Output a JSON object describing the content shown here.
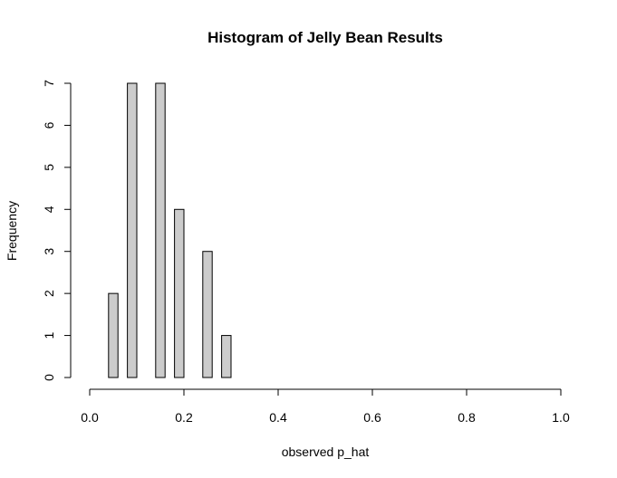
{
  "chart_data": {
    "type": "bar",
    "title": "Histogram of Jelly Bean Results",
    "xlabel": "observed p_hat",
    "ylabel": "Frequency",
    "bin_width": 0.02,
    "bins": [
      {
        "start": 0.04,
        "end": 0.06,
        "count": 2
      },
      {
        "start": 0.06,
        "end": 0.08,
        "count": 0
      },
      {
        "start": 0.08,
        "end": 0.1,
        "count": 7
      },
      {
        "start": 0.1,
        "end": 0.12,
        "count": 0
      },
      {
        "start": 0.12,
        "end": 0.14,
        "count": 0
      },
      {
        "start": 0.14,
        "end": 0.16,
        "count": 7
      },
      {
        "start": 0.16,
        "end": 0.18,
        "count": 0
      },
      {
        "start": 0.18,
        "end": 0.2,
        "count": 4
      },
      {
        "start": 0.2,
        "end": 0.22,
        "count": 0
      },
      {
        "start": 0.22,
        "end": 0.24,
        "count": 0
      },
      {
        "start": 0.24,
        "end": 0.26,
        "count": 3
      },
      {
        "start": 0.26,
        "end": 0.28,
        "count": 0
      },
      {
        "start": 0.28,
        "end": 0.3,
        "count": 1
      }
    ],
    "xlim": [
      0,
      1
    ],
    "ylim": [
      0,
      7
    ],
    "x_ticks": [
      0,
      0.2,
      0.4,
      0.6,
      0.8,
      1
    ],
    "x_tick_labels": [
      "0.0",
      "0.2",
      "0.4",
      "0.6",
      "0.8",
      "1.0"
    ],
    "y_ticks": [
      0,
      1,
      2,
      3,
      4,
      5,
      6,
      7
    ],
    "y_tick_labels": [
      "0",
      "1",
      "2",
      "3",
      "4",
      "5",
      "6",
      "7"
    ],
    "grid": false,
    "bar_color": "#cccccc",
    "bar_edge_color": "#000000"
  }
}
